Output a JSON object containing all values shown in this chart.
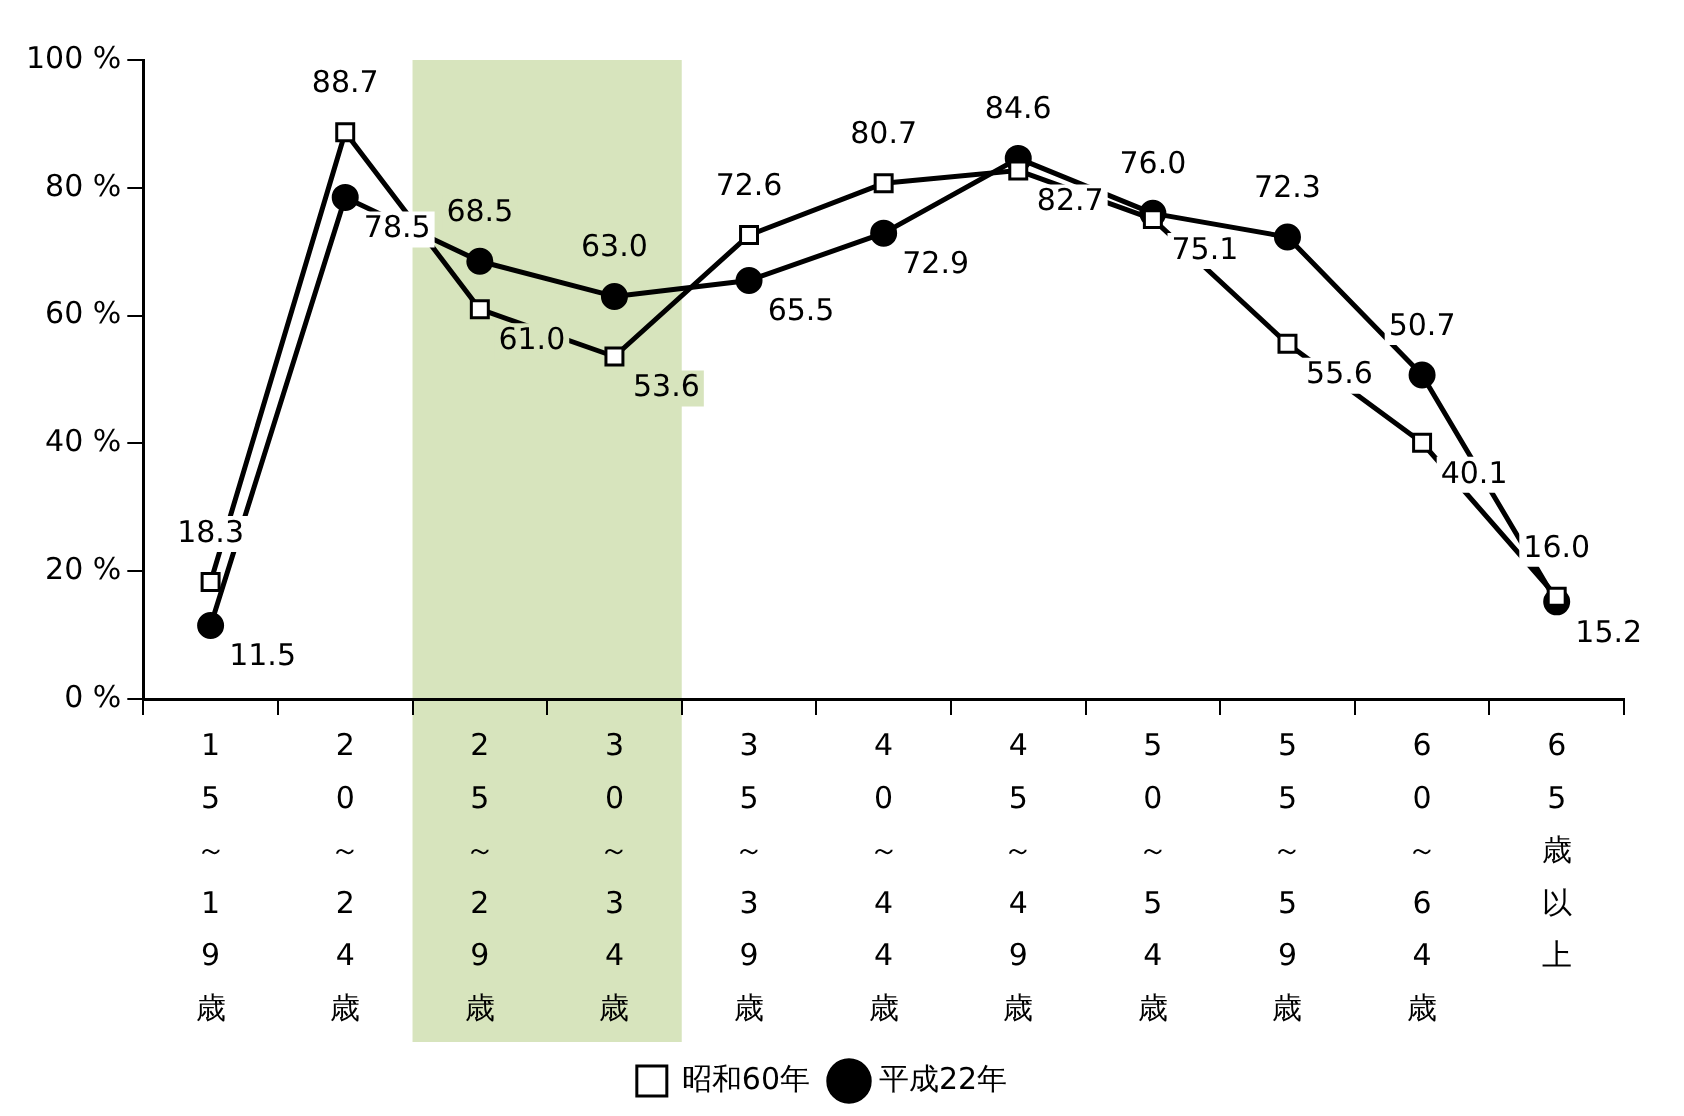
{
  "chart_data": {
    "type": "line",
    "categories": [
      "15～19歳",
      "20～24歳",
      "25～29歳",
      "30～34歳",
      "35～39歳",
      "40～44歳",
      "45～49歳",
      "50～54歳",
      "55～59歳",
      "60～64歳",
      "65歳以上"
    ],
    "series": [
      {
        "name": "昭和60年",
        "color": "#000000",
        "marker": "square",
        "values": [
          18.3,
          88.7,
          61.0,
          53.6,
          72.6,
          80.7,
          82.7,
          75.1,
          55.6,
          40.1,
          16.0
        ],
        "value_labels": [
          "18.3",
          "88.7",
          "61.0",
          "53.6",
          "72.6",
          "80.7",
          "82.7",
          "75.1",
          "55.6",
          "40.1",
          "16.0"
        ]
      },
      {
        "name": "平成22年",
        "color": "#000000",
        "marker": "circle",
        "values": [
          11.5,
          78.5,
          68.5,
          63.0,
          65.5,
          72.9,
          84.6,
          76.0,
          72.3,
          50.7,
          15.2
        ],
        "value_labels": [
          "11.5",
          "78.5",
          "68.5",
          "63.0",
          "65.5",
          "72.9",
          "84.6",
          "76.0",
          "72.3",
          "50.7",
          "15.2"
        ]
      }
    ],
    "ylim": [
      0,
      100
    ],
    "yticks": [
      {
        "value": 0,
        "label": "0 %"
      },
      {
        "value": 20,
        "label": "20 %"
      },
      {
        "value": 40,
        "label": "40 %"
      },
      {
        "value": 60,
        "label": "60 %"
      },
      {
        "value": 80,
        "label": "80 %"
      },
      {
        "value": 100,
        "label": "100 %"
      }
    ],
    "bands": [
      {
        "axis": "x",
        "from": "25～29歳",
        "to": "30～34歳",
        "color": "#d7e4bd"
      }
    ],
    "data_labels": true,
    "grid": false,
    "legend": "bottom",
    "line_style": "solid"
  }
}
